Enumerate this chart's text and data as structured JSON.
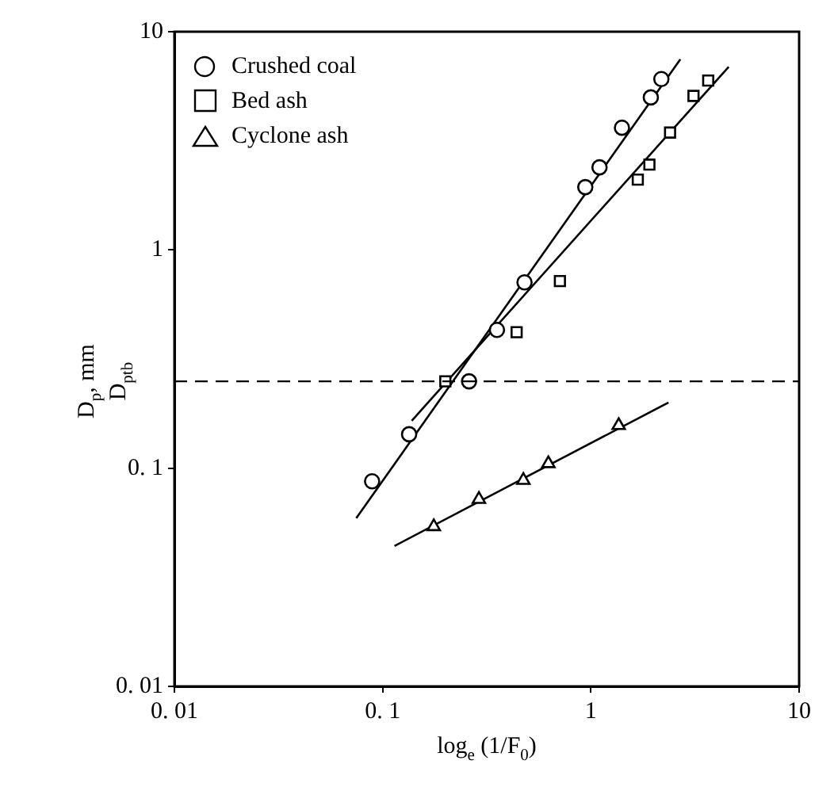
{
  "chart_data": {
    "type": "scatter",
    "xlabel": "log$_{e}$ (1/F$_{0}$)",
    "ylabel": "D$_{p}$, mm",
    "log": "xy",
    "xlim": [
      0.01,
      10
    ],
    "ylim": [
      0.01,
      10
    ],
    "xticks": [
      {
        "value": 0.01,
        "label": "0. 01"
      },
      {
        "value": 0.1,
        "label": "0. 1"
      },
      1,
      10
    ],
    "yticks": [
      {
        "value": 0.01,
        "label": "0. 01"
      },
      {
        "value": 0.1,
        "label": "0. 1"
      },
      1,
      10
    ],
    "grid": false,
    "legend": "top left",
    "ref_lines": [
      {
        "axis": "y",
        "value": 0.25,
        "label": "D$_{ptb}$",
        "line_style": "dashed",
        "color": "#000000"
      }
    ],
    "series": [
      {
        "name": "Crushed coal",
        "marker": "circle",
        "color": "#000000",
        "x": [
          2.18,
          1.94,
          1.41,
          1.1,
          0.94,
          0.48,
          0.354,
          0.26,
          0.134,
          0.089
        ],
        "values": [
          6.07,
          5.0,
          3.63,
          2.39,
          1.94,
          0.71,
          0.43,
          0.25,
          0.143,
          0.087
        ]
      },
      {
        "name": "Bed ash",
        "marker": "square",
        "color": "#000000",
        "x": [
          3.66,
          3.11,
          2.4,
          1.91,
          1.68,
          0.71,
          0.44,
          0.2
        ],
        "values": [
          5.97,
          5.08,
          3.45,
          2.46,
          2.1,
          0.72,
          0.42,
          0.25
        ]
      },
      {
        "name": "Cyclone ash",
        "marker": "triangle",
        "color": "#000000",
        "x": [
          1.36,
          0.625,
          0.474,
          0.29,
          0.176
        ],
        "values": [
          0.157,
          0.105,
          0.088,
          0.072,
          0.054
        ]
      },
      {
        "type": "line",
        "marker": "none",
        "line_style": "solid",
        "color": "#000000",
        "x": [
          0.0747,
          2.69
        ],
        "values": [
          0.059,
          7.48
        ]
      },
      {
        "type": "line",
        "marker": "none",
        "line_style": "solid",
        "color": "#000000",
        "x": [
          0.138,
          4.59
        ],
        "values": [
          0.165,
          6.9
        ]
      },
      {
        "type": "line",
        "marker": "none",
        "line_style": "solid",
        "color": "#000000",
        "x": [
          0.114,
          2.36
        ],
        "values": [
          0.044,
          0.2
        ]
      }
    ]
  }
}
